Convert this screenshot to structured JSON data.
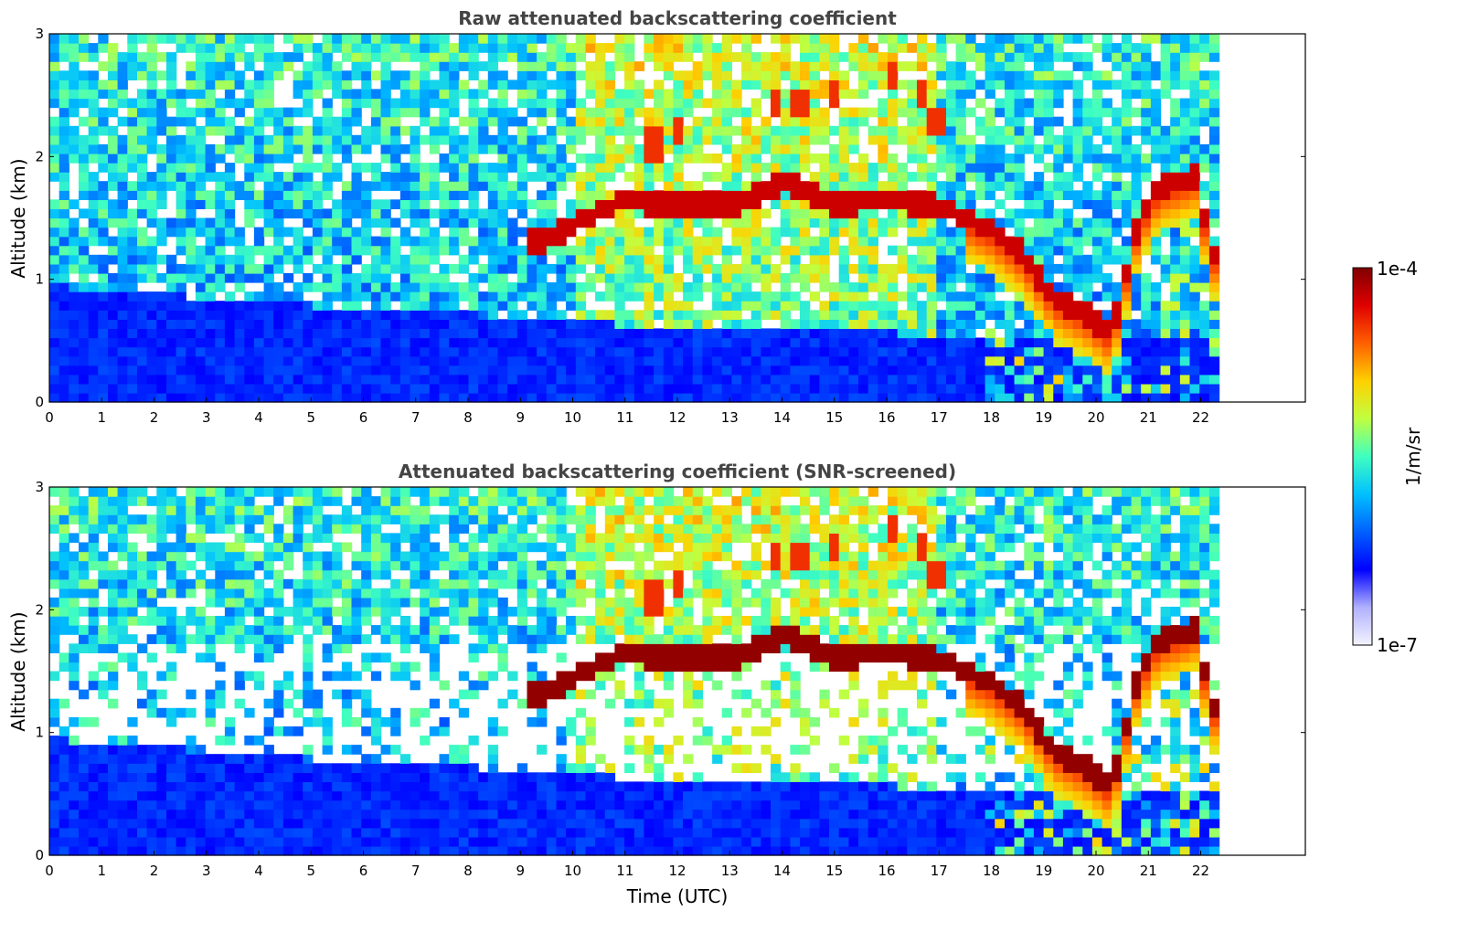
{
  "chart_data": [
    {
      "type": "heatmap",
      "title": "Raw attenuated backscattering coefficient",
      "ylabel": "Altitude (km)",
      "xlabel": "",
      "x_ticks": [
        "0",
        "1",
        "2",
        "3",
        "4",
        "5",
        "6",
        "7",
        "8",
        "9",
        "10",
        "11",
        "12",
        "13",
        "14",
        "15",
        "16",
        "17",
        "18",
        "19",
        "20",
        "21",
        "22"
      ],
      "y_ticks": [
        "0",
        "1",
        "2",
        "3"
      ],
      "xlim": [
        0,
        24
      ],
      "ylim": [
        0,
        3
      ],
      "data_end_time": 22.35,
      "features": {
        "cloud_layer_km": [
          [
            9.3,
            1.3
          ],
          [
            10,
            1.45
          ],
          [
            11,
            1.65
          ],
          [
            12,
            1.6
          ],
          [
            13,
            1.6
          ],
          [
            14,
            1.8
          ],
          [
            15,
            1.6
          ],
          [
            16,
            1.65
          ],
          [
            17,
            1.6
          ],
          [
            17.5,
            1.5
          ],
          [
            18,
            1.4
          ],
          [
            18.6,
            1.2
          ],
          [
            19.2,
            0.85
          ],
          [
            19.8,
            0.72
          ],
          [
            20.3,
            0.55
          ],
          [
            20.8,
            1.45
          ],
          [
            21.2,
            1.75
          ],
          [
            21.6,
            1.8
          ],
          [
            21.9,
            1.85
          ],
          [
            22.2,
            1.2
          ]
        ],
        "boundary_layer_top_km": [
          [
            0,
            0.95
          ],
          [
            3,
            0.85
          ],
          [
            6,
            0.75
          ],
          [
            9,
            0.7
          ],
          [
            12,
            0.6
          ],
          [
            17.5,
            0.55
          ]
        ],
        "high_cloud_patches": [
          [
            13.9,
            2.45
          ],
          [
            14.3,
            2.45
          ],
          [
            15,
            2.5
          ],
          [
            16.1,
            2.65
          ],
          [
            16.7,
            2.5
          ],
          [
            17,
            2.3
          ],
          [
            12.0,
            2.2
          ],
          [
            11.5,
            2.1
          ]
        ]
      }
    },
    {
      "type": "heatmap",
      "title": "Attenuated backscattering coefficient (SNR-screened)",
      "ylabel": "Altitude (km)",
      "xlabel": "Time (UTC)",
      "x_ticks": [
        "0",
        "1",
        "2",
        "3",
        "4",
        "5",
        "6",
        "7",
        "8",
        "9",
        "10",
        "11",
        "12",
        "13",
        "14",
        "15",
        "16",
        "17",
        "18",
        "19",
        "20",
        "21",
        "22"
      ],
      "y_ticks": [
        "0",
        "1",
        "2",
        "3"
      ],
      "xlim": [
        0,
        24
      ],
      "ylim": [
        0,
        3
      ],
      "data_end_time": 22.35
    }
  ],
  "colorbar": {
    "label": "1/m/sr",
    "max_label": "1e-4",
    "min_label": "1e-7",
    "colormap": "jet",
    "colors": [
      "#f4f4ff",
      "#b0b0ff",
      "#0000ff",
      "#0060ff",
      "#00c0ff",
      "#40ffc0",
      "#c0ff40",
      "#ffd000",
      "#ff6000",
      "#e00000",
      "#800000"
    ]
  }
}
